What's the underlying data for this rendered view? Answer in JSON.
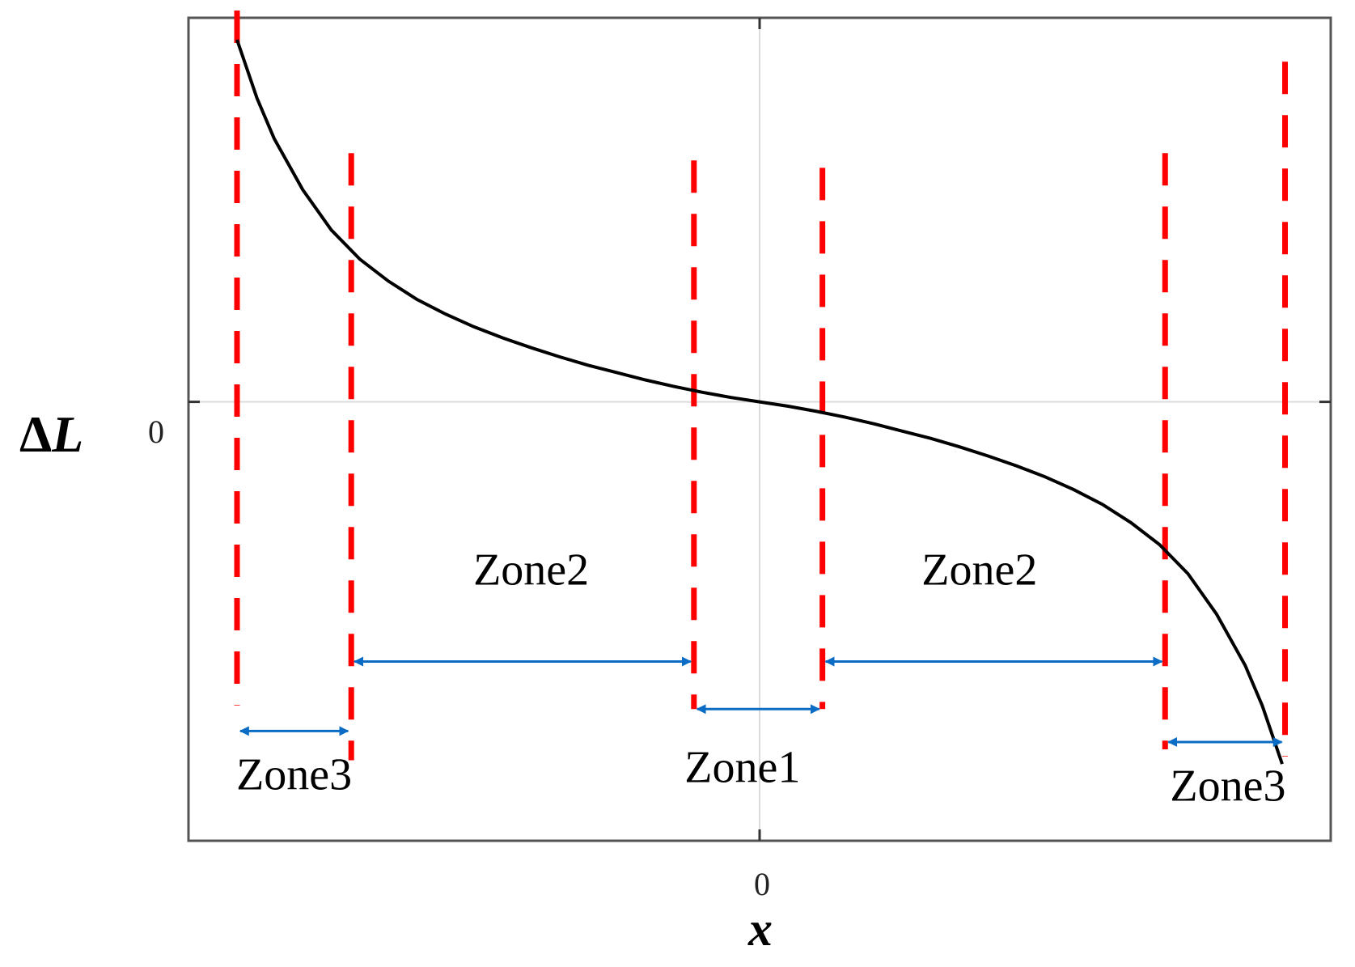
{
  "chart_data": {
    "type": "line",
    "title": "",
    "xlabel": "x",
    "ylabel_symbol": "Δ",
    "ylabel_var": "L",
    "x_tick_labels": [
      "0"
    ],
    "y_tick_labels": [
      "0"
    ],
    "xlim": [
      -1,
      1
    ],
    "ylim": [
      -1.2,
      1.05
    ],
    "grid": false,
    "zero_lines": true,
    "series": [
      {
        "x": [
          -0.915,
          -0.88,
          -0.85,
          -0.8,
          -0.75,
          -0.7,
          -0.65,
          -0.6,
          -0.55,
          -0.5,
          -0.45,
          -0.4,
          -0.35,
          -0.3,
          -0.25,
          -0.2,
          -0.15,
          -0.1,
          -0.05,
          0.0,
          0.05,
          0.1,
          0.15,
          0.2,
          0.25,
          0.3,
          0.35,
          0.4,
          0.45,
          0.5,
          0.55,
          0.6,
          0.65,
          0.7,
          0.75,
          0.8,
          0.85,
          0.88,
          0.915
        ],
        "y": [
          0.99,
          0.83,
          0.72,
          0.58,
          0.47,
          0.39,
          0.33,
          0.28,
          0.24,
          0.205,
          0.175,
          0.148,
          0.123,
          0.1,
          0.08,
          0.06,
          0.042,
          0.026,
          0.012,
          0.0,
          -0.012,
          -0.026,
          -0.042,
          -0.06,
          -0.08,
          -0.1,
          -0.123,
          -0.148,
          -0.175,
          -0.205,
          -0.24,
          -0.28,
          -0.33,
          -0.39,
          -0.47,
          -0.58,
          -0.72,
          -0.83,
          -0.99
        ],
        "color": "#000000"
      }
    ],
    "boundaries": [
      {
        "x": -0.915,
        "y_top": 1.07,
        "y_bottom": -0.83
      },
      {
        "x": -0.715,
        "y_top": 0.68,
        "y_bottom": -0.98
      },
      {
        "x": -0.115,
        "y_top": 0.66,
        "y_bottom": -0.84
      },
      {
        "x": 0.11,
        "y_top": 0.64,
        "y_bottom": -0.84
      },
      {
        "x": 0.71,
        "y_top": 0.68,
        "y_bottom": -0.95
      },
      {
        "x": 0.92,
        "y_top": 0.93,
        "y_bottom": -0.97
      }
    ],
    "boundary_color": "#ff0000",
    "zones": [
      {
        "label": "Zone3",
        "from": -0.915,
        "to": -0.715,
        "arrow_y": -0.9,
        "label_x": -0.815,
        "label_y": -1.06
      },
      {
        "label": "Zone2",
        "from": -0.715,
        "to": -0.115,
        "arrow_y": -0.71,
        "label_x": -0.4,
        "label_y": -0.5
      },
      {
        "label": "Zone1",
        "from": -0.115,
        "to": 0.11,
        "arrow_y": -0.84,
        "label_x": -0.03,
        "label_y": -1.04
      },
      {
        "label": "Zone2",
        "from": 0.11,
        "to": 0.71,
        "arrow_y": -0.71,
        "label_x": 0.385,
        "label_y": -0.5
      },
      {
        "label": "Zone3",
        "from": 0.71,
        "to": 0.92,
        "arrow_y": -0.93,
        "label_x": 0.82,
        "label_y": -1.09
      }
    ],
    "arrow_color": "#0a6cc4"
  }
}
